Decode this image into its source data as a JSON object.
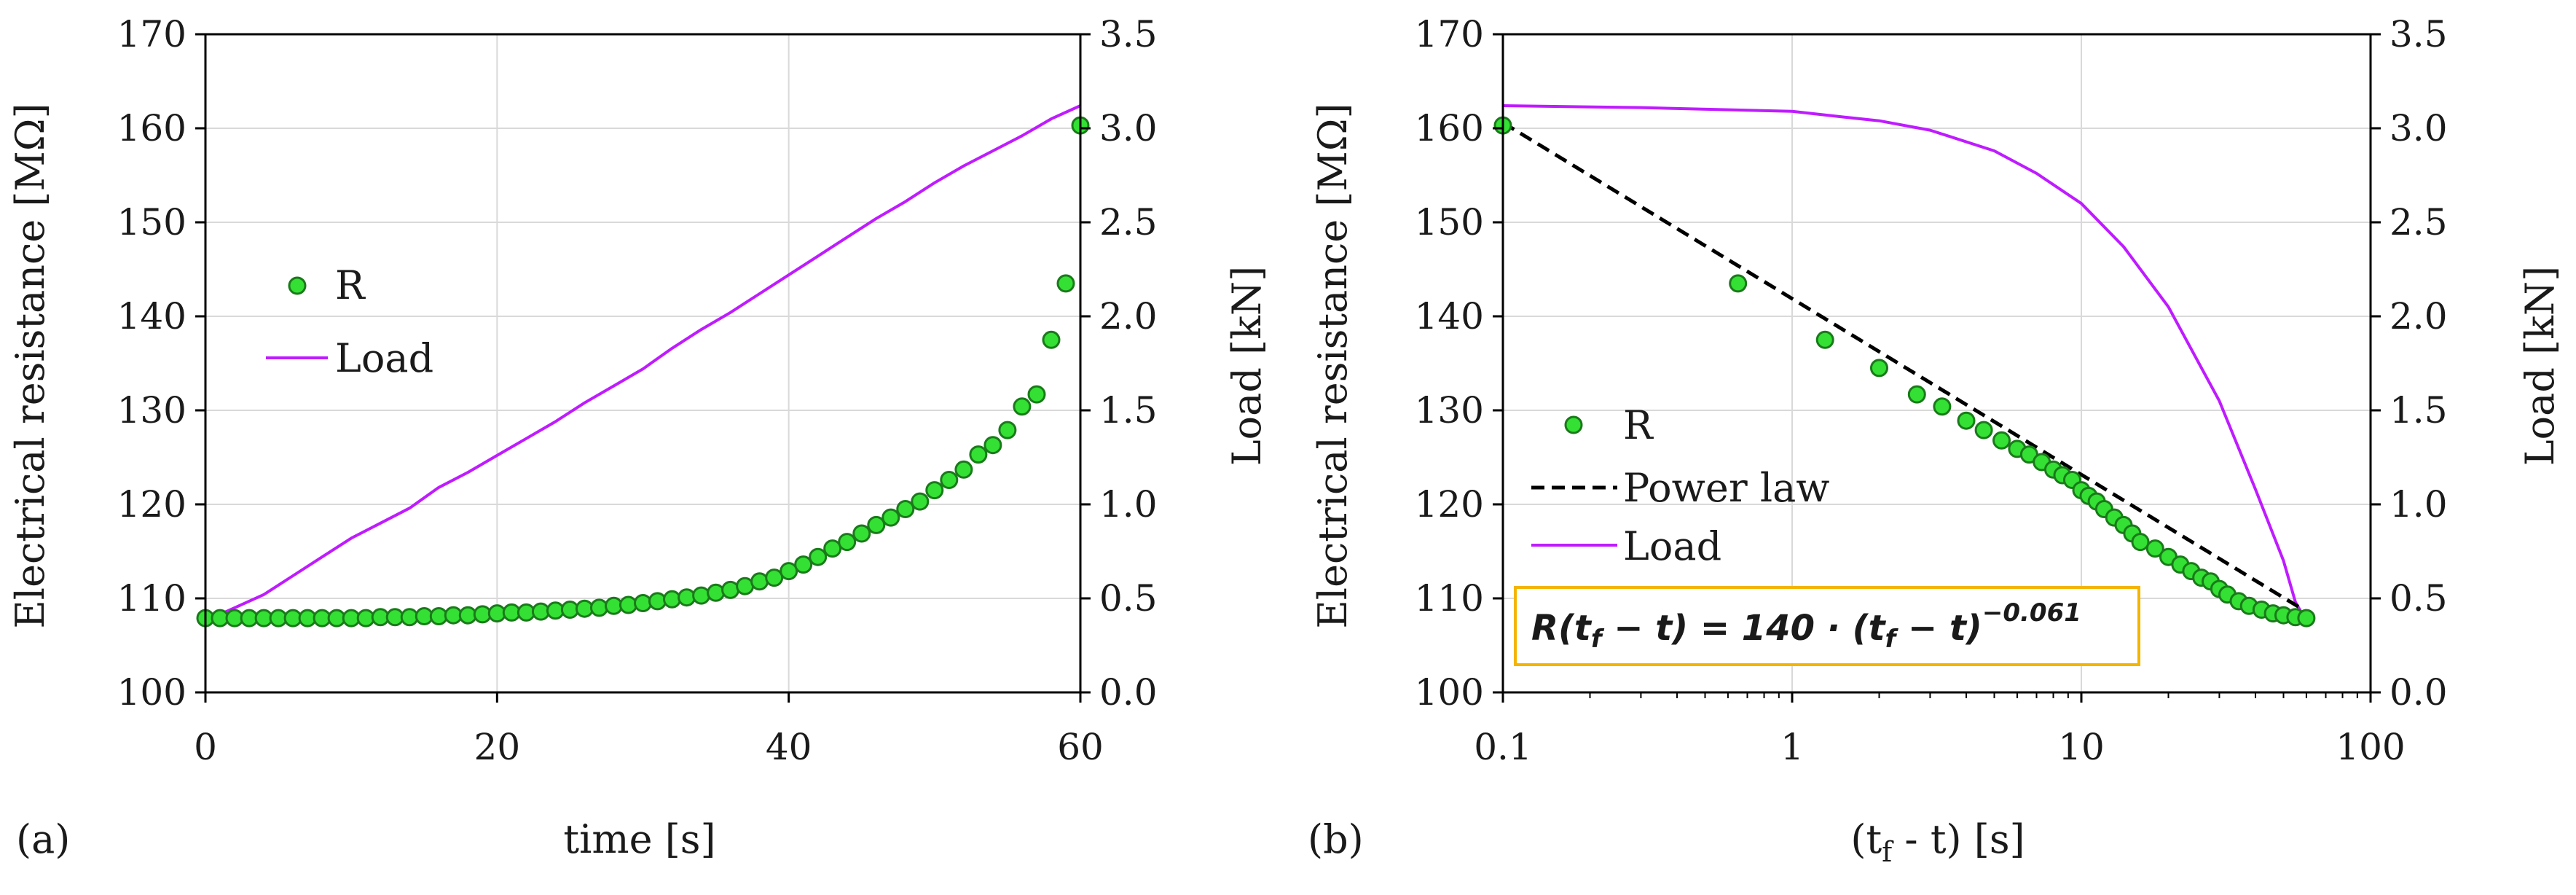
{
  "colors": {
    "resistance_fill": "#33e033",
    "resistance_edge": "#1a7a1a",
    "load_line": "#bf1bff",
    "power_law": "#000000",
    "grid": "#d9d9d9",
    "formula_border": "#f4b400"
  },
  "chart_data": [
    {
      "panel_label": "(a)",
      "type": "scatter+line",
      "xlabel": "time [s]",
      "ylabel_left": "Electrical resistance [MΩ]",
      "ylabel_right": "Load [kN]",
      "xlim": [
        0,
        60
      ],
      "ylim_left": [
        100,
        170
      ],
      "ylim_right": [
        0.0,
        3.5
      ],
      "x_ticks": [
        "0",
        "20",
        "40",
        "60"
      ],
      "y_left_ticks": [
        "100",
        "110",
        "120",
        "130",
        "140",
        "150",
        "160",
        "170"
      ],
      "y_right_ticks": [
        "0.0",
        "0.5",
        "1.0",
        "1.5",
        "2.0",
        "2.5",
        "3.0",
        "3.5"
      ],
      "grid": true,
      "legend": {
        "position": "center-left",
        "entries": [
          "R",
          "Load"
        ]
      },
      "series": [
        {
          "name": "R",
          "kind": "markers",
          "axis": "left",
          "x": [
            0,
            1,
            2,
            3,
            4,
            5,
            6,
            7,
            8,
            9,
            10,
            11,
            12,
            13,
            14,
            15,
            16,
            17,
            18,
            19,
            20,
            21,
            22,
            23,
            24,
            25,
            26,
            27,
            28,
            29,
            30,
            31,
            32,
            33,
            34,
            35,
            36,
            37,
            38,
            39,
            40,
            41,
            42,
            43,
            44,
            45,
            46,
            47,
            48,
            49,
            50,
            51,
            52,
            53,
            54,
            55,
            56,
            57,
            58,
            59,
            60
          ],
          "values": [
            107.9,
            107.9,
            107.9,
            107.9,
            107.9,
            107.9,
            107.9,
            107.9,
            107.9,
            107.9,
            107.9,
            107.9,
            108.0,
            108.0,
            108.0,
            108.1,
            108.1,
            108.2,
            108.2,
            108.3,
            108.4,
            108.5,
            108.5,
            108.6,
            108.7,
            108.8,
            108.9,
            109.0,
            109.2,
            109.3,
            109.5,
            109.7,
            109.9,
            110.1,
            110.3,
            110.6,
            110.9,
            111.3,
            111.8,
            112.2,
            112.9,
            113.6,
            114.4,
            115.3,
            116.0,
            116.9,
            117.8,
            118.6,
            119.5,
            120.3,
            121.5,
            122.6,
            123.7,
            125.3,
            126.3,
            127.9,
            130.4,
            131.7,
            137.5,
            143.5,
            160.3
          ]
        },
        {
          "name": "Load",
          "kind": "line",
          "axis": "right",
          "x": [
            0,
            2,
            4,
            6,
            8,
            10,
            12,
            14,
            16,
            18,
            20,
            22,
            24,
            26,
            28,
            30,
            32,
            34,
            36,
            38,
            40,
            42,
            44,
            46,
            48,
            50,
            52,
            54,
            56,
            58,
            60
          ],
          "values": [
            0.38,
            0.45,
            0.52,
            0.62,
            0.72,
            0.82,
            0.9,
            0.98,
            1.09,
            1.17,
            1.26,
            1.35,
            1.44,
            1.54,
            1.63,
            1.72,
            1.83,
            1.93,
            2.02,
            2.12,
            2.22,
            2.32,
            2.42,
            2.52,
            2.61,
            2.71,
            2.8,
            2.88,
            2.96,
            3.05,
            3.12
          ]
        }
      ]
    },
    {
      "panel_label": "(b)",
      "type": "scatter+line",
      "xlabel": "(tᶠ - t) [s]",
      "ylabel_left": "Electrical resistance [MΩ]",
      "ylabel_right": "Load [kN]",
      "x_scale": "log",
      "xlim": [
        0.1,
        100
      ],
      "ylim_left": [
        100,
        170
      ],
      "ylim_right": [
        0.0,
        3.5
      ],
      "x_ticks": [
        "0.1",
        "1",
        "10",
        "100"
      ],
      "y_left_ticks": [
        "100",
        "110",
        "120",
        "130",
        "140",
        "150",
        "160",
        "170"
      ],
      "y_right_ticks": [
        "0.0",
        "0.5",
        "1.0",
        "1.5",
        "2.0",
        "2.5",
        "3.0",
        "3.5"
      ],
      "grid": true,
      "legend": {
        "position": "center-left",
        "entries": [
          "R",
          "Power law",
          "Load"
        ]
      },
      "annotation": "R(t_f − t) = 140 · (t_f − t)^−0.061",
      "series": [
        {
          "name": "R",
          "kind": "markers",
          "axis": "left",
          "x": [
            0.1,
            0.65,
            1.3,
            2.0,
            2.7,
            3.3,
            4.0,
            4.6,
            5.3,
            6.0,
            6.6,
            7.3,
            8.0,
            8.6,
            9.3,
            10.0,
            10.6,
            11.3,
            12,
            13,
            14,
            15,
            16,
            18,
            20,
            22,
            24,
            26,
            28,
            30,
            32,
            35,
            38,
            42,
            46,
            50,
            55,
            60
          ],
          "values": [
            160.3,
            143.5,
            137.5,
            134.5,
            131.7,
            130.4,
            128.9,
            127.9,
            126.8,
            125.9,
            125.3,
            124.5,
            123.7,
            123.1,
            122.6,
            121.5,
            120.9,
            120.3,
            119.5,
            118.6,
            117.8,
            116.9,
            116.0,
            115.3,
            114.4,
            113.6,
            112.9,
            112.2,
            111.8,
            111.0,
            110.4,
            109.7,
            109.2,
            108.8,
            108.4,
            108.2,
            108.0,
            107.9
          ]
        },
        {
          "name": "Power law",
          "kind": "dashed-line",
          "axis": "left",
          "x": [
            0.1,
            60
          ],
          "values": [
            160.6,
            108.6
          ]
        },
        {
          "name": "Load",
          "kind": "line",
          "axis": "right",
          "x": [
            0.1,
            0.3,
            1.0,
            1.5,
            2.0,
            3.0,
            5.0,
            7.0,
            10,
            14,
            20,
            30,
            40,
            50,
            55,
            60
          ],
          "values": [
            3.12,
            3.11,
            3.09,
            3.06,
            3.04,
            2.99,
            2.88,
            2.76,
            2.6,
            2.37,
            2.05,
            1.55,
            1.08,
            0.7,
            0.48,
            0.38
          ]
        }
      ]
    }
  ]
}
